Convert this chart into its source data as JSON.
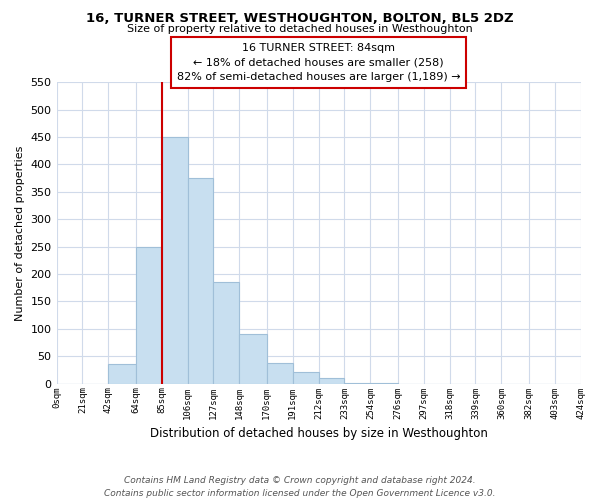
{
  "title": "16, TURNER STREET, WESTHOUGHTON, BOLTON, BL5 2DZ",
  "subtitle": "Size of property relative to detached houses in Westhoughton",
  "xlabel": "Distribution of detached houses by size in Westhoughton",
  "ylabel": "Number of detached properties",
  "bin_edges": [
    0,
    21,
    42,
    64,
    85,
    106,
    127,
    148,
    170,
    191,
    212,
    233,
    254,
    276,
    297,
    318,
    339,
    360,
    382,
    403,
    424
  ],
  "bar_heights": [
    0,
    0,
    35,
    250,
    450,
    375,
    185,
    90,
    38,
    22,
    10,
    2,
    1,
    0,
    0,
    0,
    0,
    0,
    0,
    0
  ],
  "bar_color": "#c8dff0",
  "bar_edge_color": "#a0bfd8",
  "property_line_x": 85,
  "property_line_color": "#cc0000",
  "annotation_title": "16 TURNER STREET: 84sqm",
  "annotation_line1": "← 18% of detached houses are smaller (258)",
  "annotation_line2": "82% of semi-detached houses are larger (1,189) →",
  "annotation_box_color": "#ffffff",
  "annotation_box_edge_color": "#cc0000",
  "ylim": [
    0,
    550
  ],
  "xlim": [
    0,
    424
  ],
  "tick_labels": [
    "0sqm",
    "21sqm",
    "42sqm",
    "64sqm",
    "85sqm",
    "106sqm",
    "127sqm",
    "148sqm",
    "170sqm",
    "191sqm",
    "212sqm",
    "233sqm",
    "254sqm",
    "276sqm",
    "297sqm",
    "318sqm",
    "339sqm",
    "360sqm",
    "382sqm",
    "403sqm",
    "424sqm"
  ],
  "yticks": [
    0,
    50,
    100,
    150,
    200,
    250,
    300,
    350,
    400,
    450,
    500,
    550
  ],
  "footnote1": "Contains HM Land Registry data © Crown copyright and database right 2024.",
  "footnote2": "Contains public sector information licensed under the Open Government Licence v3.0.",
  "grid_color": "#d0daea",
  "background_color": "#ffffff"
}
